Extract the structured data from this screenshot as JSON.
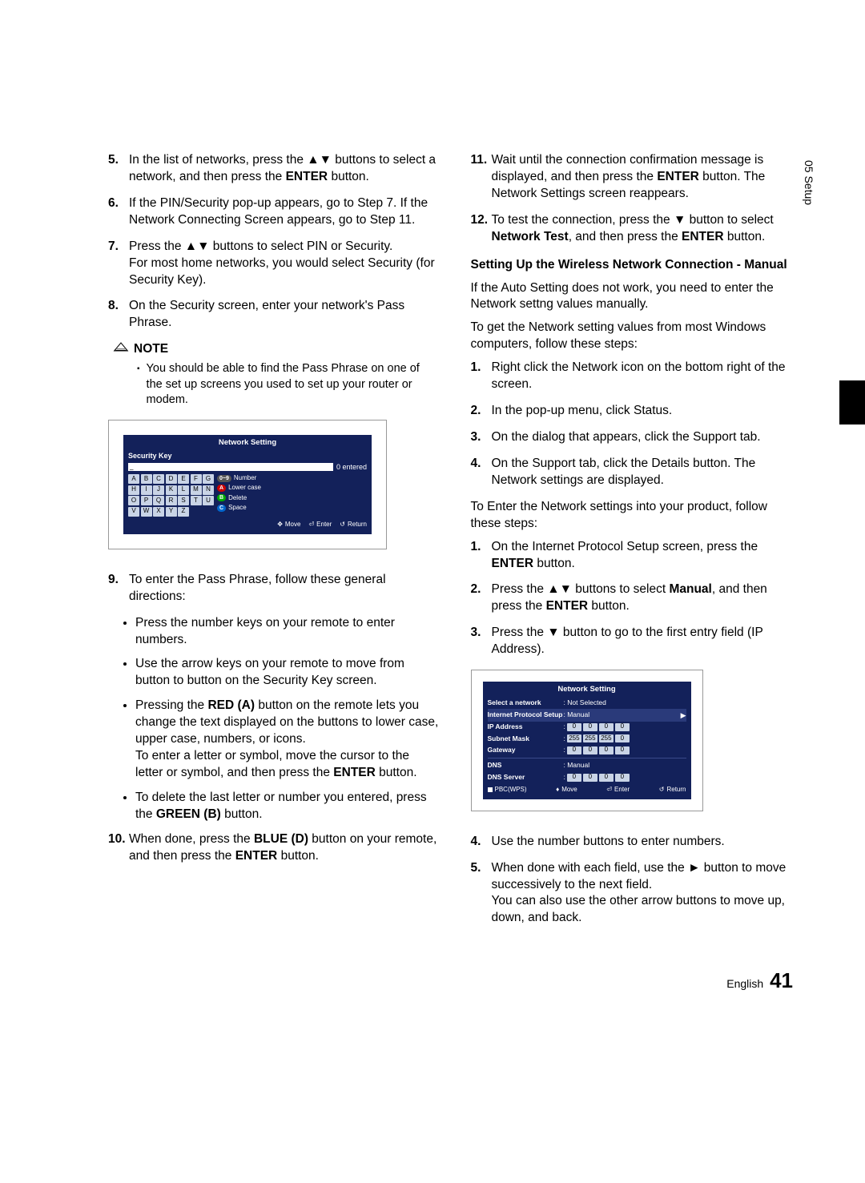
{
  "sideTab": "05   Setup",
  "left": {
    "items": [
      {
        "n": "5.",
        "t": [
          "In the list of networks, press the ▲▼ buttons to select a network, and then press the ",
          {
            "b": "ENTER"
          },
          " button."
        ]
      },
      {
        "n": "6.",
        "t": [
          "If the PIN/Security pop-up appears, go to Step 7. If the Network Connecting Screen appears, go to Step 11."
        ]
      },
      {
        "n": "7.",
        "t": [
          "Press the ▲▼ buttons to select PIN or Security.",
          {
            "br": true
          },
          "For most home networks, you would select Security (for Security Key)."
        ]
      },
      {
        "n": "8.",
        "t": [
          "On the Security screen, enter your network's Pass Phrase."
        ]
      }
    ],
    "noteLabel": "NOTE",
    "noteBody": "You should be able to find the Pass Phrase on one of the set up screens you used to set up your router or modem.",
    "screenshot1": {
      "title": "Network Setting",
      "secLabel": "Security Key",
      "entered": "0 entered",
      "keys": [
        [
          "A",
          "B",
          "C",
          "D",
          "E",
          "F",
          "G"
        ],
        [
          "H",
          "I",
          "J",
          "K",
          "L",
          "M",
          "N"
        ],
        [
          "O",
          "P",
          "Q",
          "R",
          "S",
          "T",
          "U"
        ],
        [
          "V",
          "W",
          "X",
          "Y",
          "Z"
        ]
      ],
      "side": [
        {
          "p": "num",
          "t": "Number"
        },
        {
          "p": "a",
          "t": "Lower case"
        },
        {
          "p": "b",
          "t": "Delete"
        },
        {
          "p": "c",
          "t": "Space"
        }
      ],
      "foot": [
        " Move",
        " Enter",
        " Return"
      ]
    },
    "items2": [
      {
        "n": "9.",
        "t": [
          "To enter the Pass Phrase, follow these general directions:"
        ]
      }
    ],
    "sub9": [
      "Press the number keys on your remote to enter numbers.",
      "Use the arrow keys on your remote to move from button to button on the Security Key screen.",
      [
        "Pressing the ",
        {
          "b": "RED (A)"
        },
        " button on the remote lets you change the text displayed on the buttons to lower case, upper case, numbers, or icons.",
        {
          "br": true
        },
        "To enter a letter or symbol, move the cursor to the letter or symbol, and then press the ",
        {
          "b": "ENTER"
        },
        " button."
      ],
      [
        "To delete the last letter or number you entered, press the ",
        {
          "b": "GREEN (B)"
        },
        " button."
      ]
    ],
    "items3": [
      {
        "n": "10.",
        "t": [
          "When done, press the ",
          {
            "b": "BLUE (D)"
          },
          " button on your remote, and then press the ",
          {
            "b": "ENTER"
          },
          " button."
        ]
      }
    ]
  },
  "right": {
    "items": [
      {
        "n": "11.",
        "t": [
          "Wait until the connection confirmation message is displayed, and then press the ",
          {
            "b": "ENTER"
          },
          " button. The Network Settings screen reappears."
        ]
      },
      {
        "n": "12.",
        "t": [
          "To test the connection, press the ▼ button to select ",
          {
            "b": "Network Test"
          },
          ", and then press the ",
          {
            "b": "ENTER"
          },
          " button."
        ]
      }
    ],
    "heading": "Setting Up the Wireless Network Connection - Manual",
    "p1": "If the Auto Setting does not work, you need to enter the Network settng values manually.",
    "p2": "To get the Network setting values from most Windows computers, follow these steps:",
    "itemsA": [
      {
        "n": "1.",
        "t": [
          "Right click the Network icon on the bottom right of the screen."
        ]
      },
      {
        "n": "2.",
        "t": [
          "In the pop-up menu, click Status."
        ]
      },
      {
        "n": "3.",
        "t": [
          "On the dialog that appears, click the Support tab."
        ]
      },
      {
        "n": "4.",
        "t": [
          "On the Support tab, click the Details button. The Network settings are displayed."
        ]
      }
    ],
    "p3": "To Enter the Network settings into your product, follow these steps:",
    "itemsB": [
      {
        "n": "1.",
        "t": [
          "On the Internet Protocol Setup screen, press the ",
          {
            "b": "ENTER"
          },
          " button."
        ]
      },
      {
        "n": "2.",
        "t": [
          "Press the ▲▼ buttons to select ",
          {
            "b": "Manual"
          },
          ", and then press the ",
          {
            "b": "ENTER"
          },
          " button."
        ]
      },
      {
        "n": "3.",
        "t": [
          "Press the ▼ button to go to the first entry field (IP Address)."
        ]
      }
    ],
    "screenshot2": {
      "title": "Network Setting",
      "rows": [
        {
          "lab": "Select a network",
          "txt": ": Not Selected"
        },
        {
          "lab": "Internet Protocol Setup",
          "txt": ": Manual",
          "arrow": true,
          "bg": true
        },
        {
          "lab": "IP Address",
          "ip": [
            "0",
            "0",
            "0",
            "0"
          ]
        },
        {
          "lab": "Subnet Mask",
          "ip": [
            "255",
            "255",
            "255",
            "0"
          ]
        },
        {
          "lab": "Gateway",
          "ip": [
            "0",
            "0",
            "0",
            "0"
          ]
        },
        {
          "hr": true
        },
        {
          "lab": "DNS",
          "txt": ": Manual"
        },
        {
          "lab": "DNS Server",
          "ip": [
            "0",
            "0",
            "0",
            "0"
          ]
        }
      ],
      "foot": [
        "PBC(WPS)",
        "Move",
        "Enter",
        "Return"
      ]
    },
    "itemsC": [
      {
        "n": "4.",
        "t": [
          "Use the number buttons to enter numbers."
        ]
      },
      {
        "n": "5.",
        "t": [
          "When done with each field, use the ► button to move successively to the next field.",
          {
            "br": true
          },
          "You can also use the other arrow buttons to move up, down, and back."
        ]
      }
    ]
  },
  "footer": {
    "lang": "English",
    "page": "41"
  }
}
